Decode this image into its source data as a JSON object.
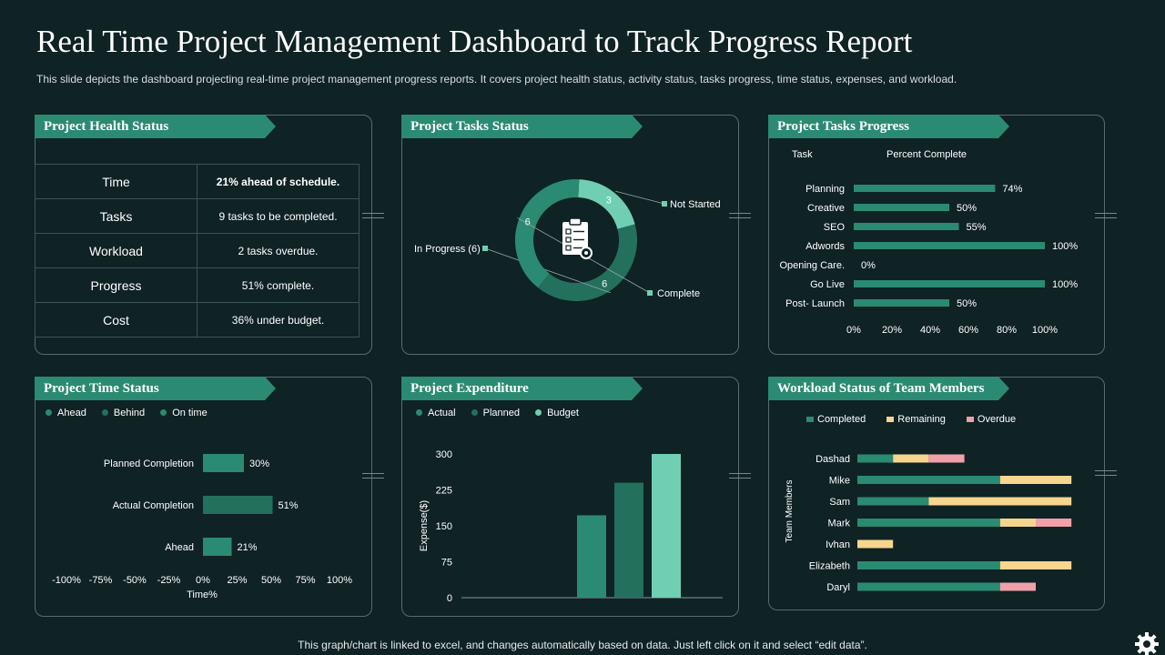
{
  "title": "Real Time Project Management Dashboard to Track Progress Report",
  "subtitle": "This slide depicts the dashboard projecting real-time project management progress reports. It covers project health status, activity status, tasks progress, time status, expenses, and workload.",
  "footer": "This graph/chart is linked to excel, and changes automatically based on data. Just left click on it and select “edit data”.",
  "colors": {
    "accent": "#2b8a72",
    "dark_green": "#23705c",
    "light_teal": "#70cfb3",
    "yellow": "#f6d58e",
    "pink": "#f0a0a8",
    "background": "#0f2224"
  },
  "health": {
    "header": "Project Health Status",
    "rows": [
      {
        "label": "Time",
        "value": "21% ahead of schedule."
      },
      {
        "label": "Tasks",
        "value": "9 tasks to be completed."
      },
      {
        "label": "Workload",
        "value": "2 tasks overdue."
      },
      {
        "label": "Progress",
        "value": "51% complete."
      },
      {
        "label": "Cost",
        "value": "36% under budget."
      }
    ]
  },
  "tasks_status": {
    "header": "Project Tasks Status",
    "icon": "clipboard-checklist-icon",
    "chart_data": {
      "type": "pie",
      "categories": [
        "Not Started",
        "In Progress (6)",
        "Complete"
      ],
      "values": [
        3,
        6,
        6
      ],
      "value_labels": [
        "3",
        "6",
        "6"
      ]
    }
  },
  "tasks_progress": {
    "header": "Project Tasks Progress",
    "col_task": "Task",
    "col_percent": "Percent Complete",
    "chart_data": {
      "type": "bar",
      "categories": [
        "Planning",
        "Creative",
        "SEO",
        "Adwords",
        "Opening Care.",
        "Go Live",
        "Post- Launch"
      ],
      "values": [
        74,
        50,
        55,
        100,
        0,
        100,
        50
      ],
      "value_labels": [
        "74%",
        "50%",
        "55%",
        "100%",
        "0%",
        "100%",
        "50%"
      ],
      "xlim": [
        0,
        100
      ],
      "xticks": [
        "0%",
        "20%",
        "40%",
        "60%",
        "80%",
        "100%"
      ]
    }
  },
  "time_status": {
    "header": "Project Time Status",
    "legend": [
      "Ahead",
      "Behind",
      "On time"
    ],
    "xlabel": "Time%",
    "chart_data": {
      "type": "bar",
      "categories": [
        "Planned Completion",
        "Actual Completion",
        "Ahead"
      ],
      "values": [
        30,
        51,
        21
      ],
      "value_labels": [
        "30%",
        "51%",
        "21%"
      ],
      "xlim": [
        -100,
        100
      ],
      "xticks": [
        "-100%",
        "-75%",
        "-50%",
        "-25%",
        "0%",
        "25%",
        "50%",
        "75%",
        "100%"
      ]
    }
  },
  "expenditure": {
    "header": "Project Expenditure",
    "legend": [
      "Actual",
      "Planned",
      "Budget"
    ],
    "ylabel": "Expense($)",
    "chart_data": {
      "type": "bar",
      "series": [
        {
          "name": "Actual",
          "values": [
            172
          ]
        },
        {
          "name": "Planned",
          "values": [
            240
          ]
        },
        {
          "name": "Budget",
          "values": [
            300
          ]
        }
      ],
      "ylim": [
        0,
        300
      ],
      "yticks": [
        "0",
        "75",
        "150",
        "225",
        "300"
      ]
    }
  },
  "workload": {
    "header": "Workload  Status of Team Members",
    "ylabel": "Team Members",
    "chart_data": {
      "type": "bar",
      "categories": [
        "Dashad",
        "Mike",
        "Sam",
        "Mark",
        "Ivhan",
        "Elizabeth",
        "Daryl"
      ],
      "series": [
        {
          "name": "Completed",
          "values": [
            1,
            4,
            2,
            4,
            0,
            4,
            4
          ]
        },
        {
          "name": "Remaining",
          "values": [
            1,
            2,
            4,
            1,
            1,
            2,
            0
          ]
        },
        {
          "name": "Overdue",
          "values": [
            1,
            0,
            0,
            1,
            0,
            0,
            1
          ]
        }
      ]
    }
  }
}
